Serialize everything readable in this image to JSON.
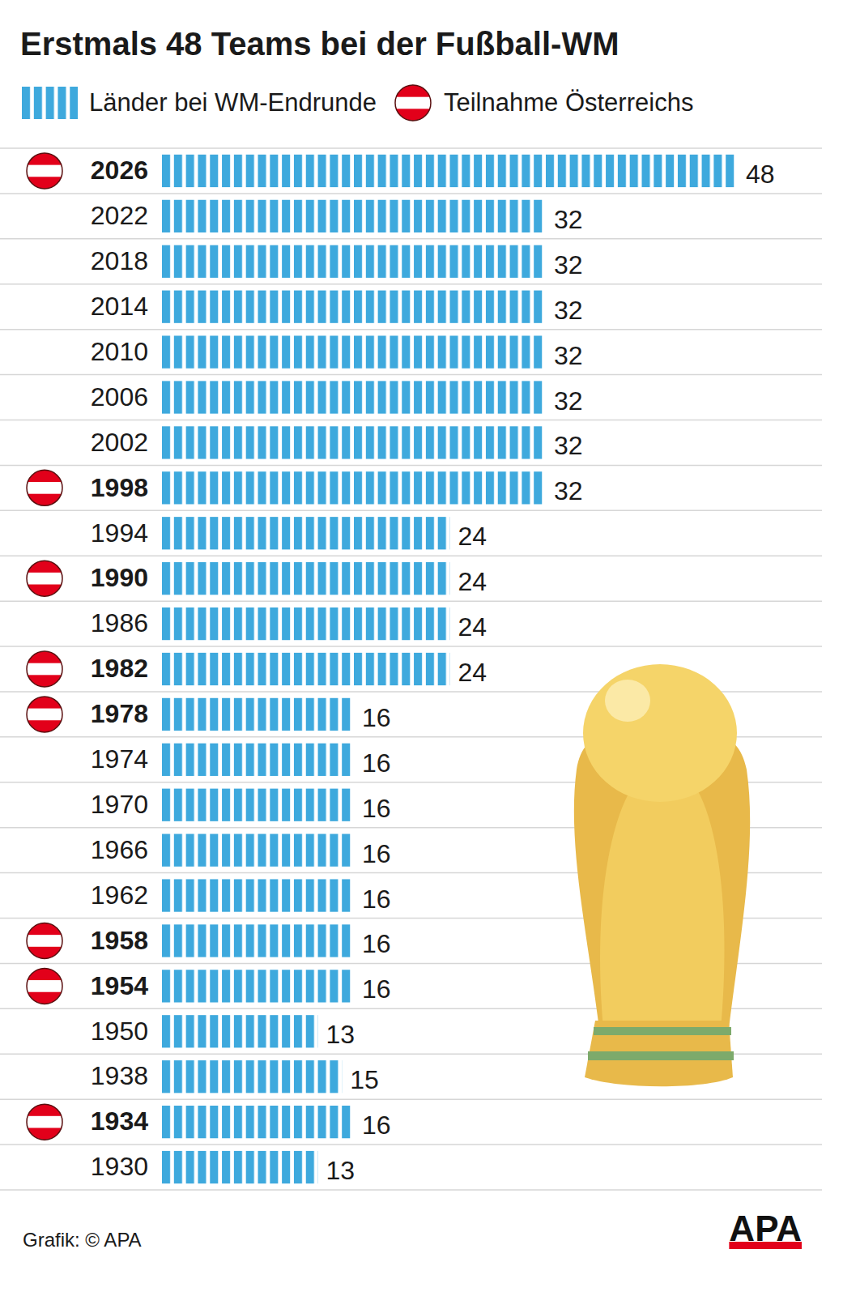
{
  "chart_data": {
    "type": "bar",
    "orientation": "horizontal",
    "title": "Erstmals 48 Teams bei der Fußball-WM",
    "categories": [
      "2026",
      "2022",
      "2018",
      "2014",
      "2010",
      "2006",
      "2002",
      "1998",
      "1994",
      "1990",
      "1986",
      "1982",
      "1978",
      "1974",
      "1970",
      "1966",
      "1962",
      "1958",
      "1954",
      "1950",
      "1938",
      "1934",
      "1930"
    ],
    "series": [
      {
        "name": "Länder bei WM-Endrunde",
        "color": "#3ea9dd",
        "values": [
          48,
          32,
          32,
          32,
          32,
          32,
          32,
          32,
          24,
          24,
          24,
          24,
          16,
          16,
          16,
          16,
          16,
          16,
          16,
          13,
          15,
          16,
          13
        ]
      },
      {
        "name": "Teilnahme Österreichs",
        "color": "#e2001a",
        "type": "marker",
        "marker": "flag",
        "values": [
          true,
          false,
          false,
          false,
          false,
          false,
          false,
          true,
          false,
          true,
          false,
          true,
          true,
          false,
          false,
          false,
          false,
          true,
          true,
          false,
          false,
          true,
          false
        ]
      }
    ],
    "xlim": [
      0,
      48
    ],
    "data_labels": true,
    "tick_labels": "y",
    "grid": true,
    "legend": "top",
    "source": "Grafik: © APA",
    "source_logo": "APA"
  }
}
